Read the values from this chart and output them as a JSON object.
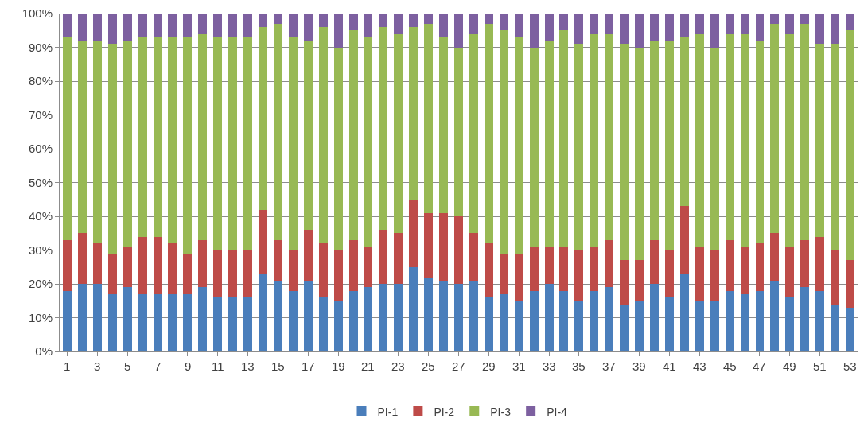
{
  "chart_data": {
    "type": "bar",
    "stacked": true,
    "categories": [
      "1",
      null,
      "3",
      null,
      "5",
      null,
      "7",
      null,
      "9",
      null,
      "11",
      null,
      "13",
      null,
      "15",
      null,
      "17",
      null,
      "19",
      null,
      "21",
      null,
      "23",
      null,
      "25",
      null,
      "27",
      null,
      "29",
      null,
      "31",
      null,
      "33",
      null,
      "35",
      null,
      "37",
      null,
      "39",
      null,
      "41",
      null,
      "43",
      null,
      "45",
      null,
      "47",
      null,
      "49",
      null,
      "51",
      null,
      "53"
    ],
    "series": [
      {
        "name": "PI-1",
        "color": "#4a7ebb",
        "values": [
          18,
          20,
          20,
          17,
          19,
          17,
          17,
          17,
          17,
          19,
          16,
          16,
          16,
          23,
          21,
          18,
          21,
          16,
          15,
          18,
          19,
          20,
          20,
          25,
          22,
          21,
          20,
          21,
          16,
          17,
          15,
          18,
          20,
          18,
          15,
          18,
          19,
          14,
          15,
          20,
          16,
          23,
          15,
          15,
          18,
          17,
          18,
          21,
          16,
          19,
          18,
          14,
          13
        ]
      },
      {
        "name": "PI-2",
        "color": "#be4b48",
        "values": [
          15,
          15,
          12,
          12,
          12,
          17,
          17,
          15,
          12,
          14,
          14,
          14,
          14,
          19,
          12,
          12,
          15,
          16,
          15,
          15,
          12,
          16,
          15,
          20,
          19,
          20,
          20,
          14,
          16,
          12,
          14,
          13,
          11,
          13,
          15,
          13,
          14,
          13,
          12,
          13,
          14,
          20,
          16,
          15,
          15,
          14,
          14,
          14,
          15,
          14,
          16,
          16,
          14
        ]
      },
      {
        "name": "PI-3",
        "color": "#98b954",
        "values": [
          60,
          57,
          60,
          62,
          61,
          59,
          59,
          61,
          64,
          61,
          63,
          63,
          63,
          54,
          64,
          63,
          56,
          64,
          60,
          62,
          62,
          60,
          59,
          51,
          56,
          52,
          50,
          59,
          65,
          66,
          64,
          59,
          61,
          64,
          61,
          63,
          61,
          64,
          63,
          59,
          62,
          50,
          63,
          60,
          61,
          63,
          60,
          62,
          63,
          64,
          57,
          61,
          68
        ]
      },
      {
        "name": "PI-4",
        "color": "#7d60a0",
        "values": [
          7,
          8,
          8,
          9,
          8,
          7,
          7,
          7,
          7,
          6,
          7,
          7,
          7,
          4,
          3,
          7,
          8,
          4,
          10,
          5,
          7,
          4,
          6,
          4,
          3,
          7,
          10,
          6,
          3,
          5,
          7,
          10,
          8,
          5,
          9,
          6,
          6,
          9,
          10,
          8,
          8,
          7,
          6,
          10,
          6,
          6,
          8,
          3,
          6,
          3,
          9,
          9,
          5
        ]
      }
    ],
    "ylim": [
      0,
      100
    ],
    "yticks": [
      {
        "value": 0,
        "label": "0%"
      },
      {
        "value": 10,
        "label": "10%"
      },
      {
        "value": 20,
        "label": "20%"
      },
      {
        "value": 30,
        "label": "30%"
      },
      {
        "value": 40,
        "label": "40%"
      },
      {
        "value": 50,
        "label": "50%"
      },
      {
        "value": 60,
        "label": "60%"
      },
      {
        "value": 70,
        "label": "70%"
      },
      {
        "value": 80,
        "label": "80%"
      },
      {
        "value": 90,
        "label": "90%"
      },
      {
        "value": 100,
        "label": "100%"
      }
    ],
    "grid": "y",
    "legend": "bottom"
  }
}
